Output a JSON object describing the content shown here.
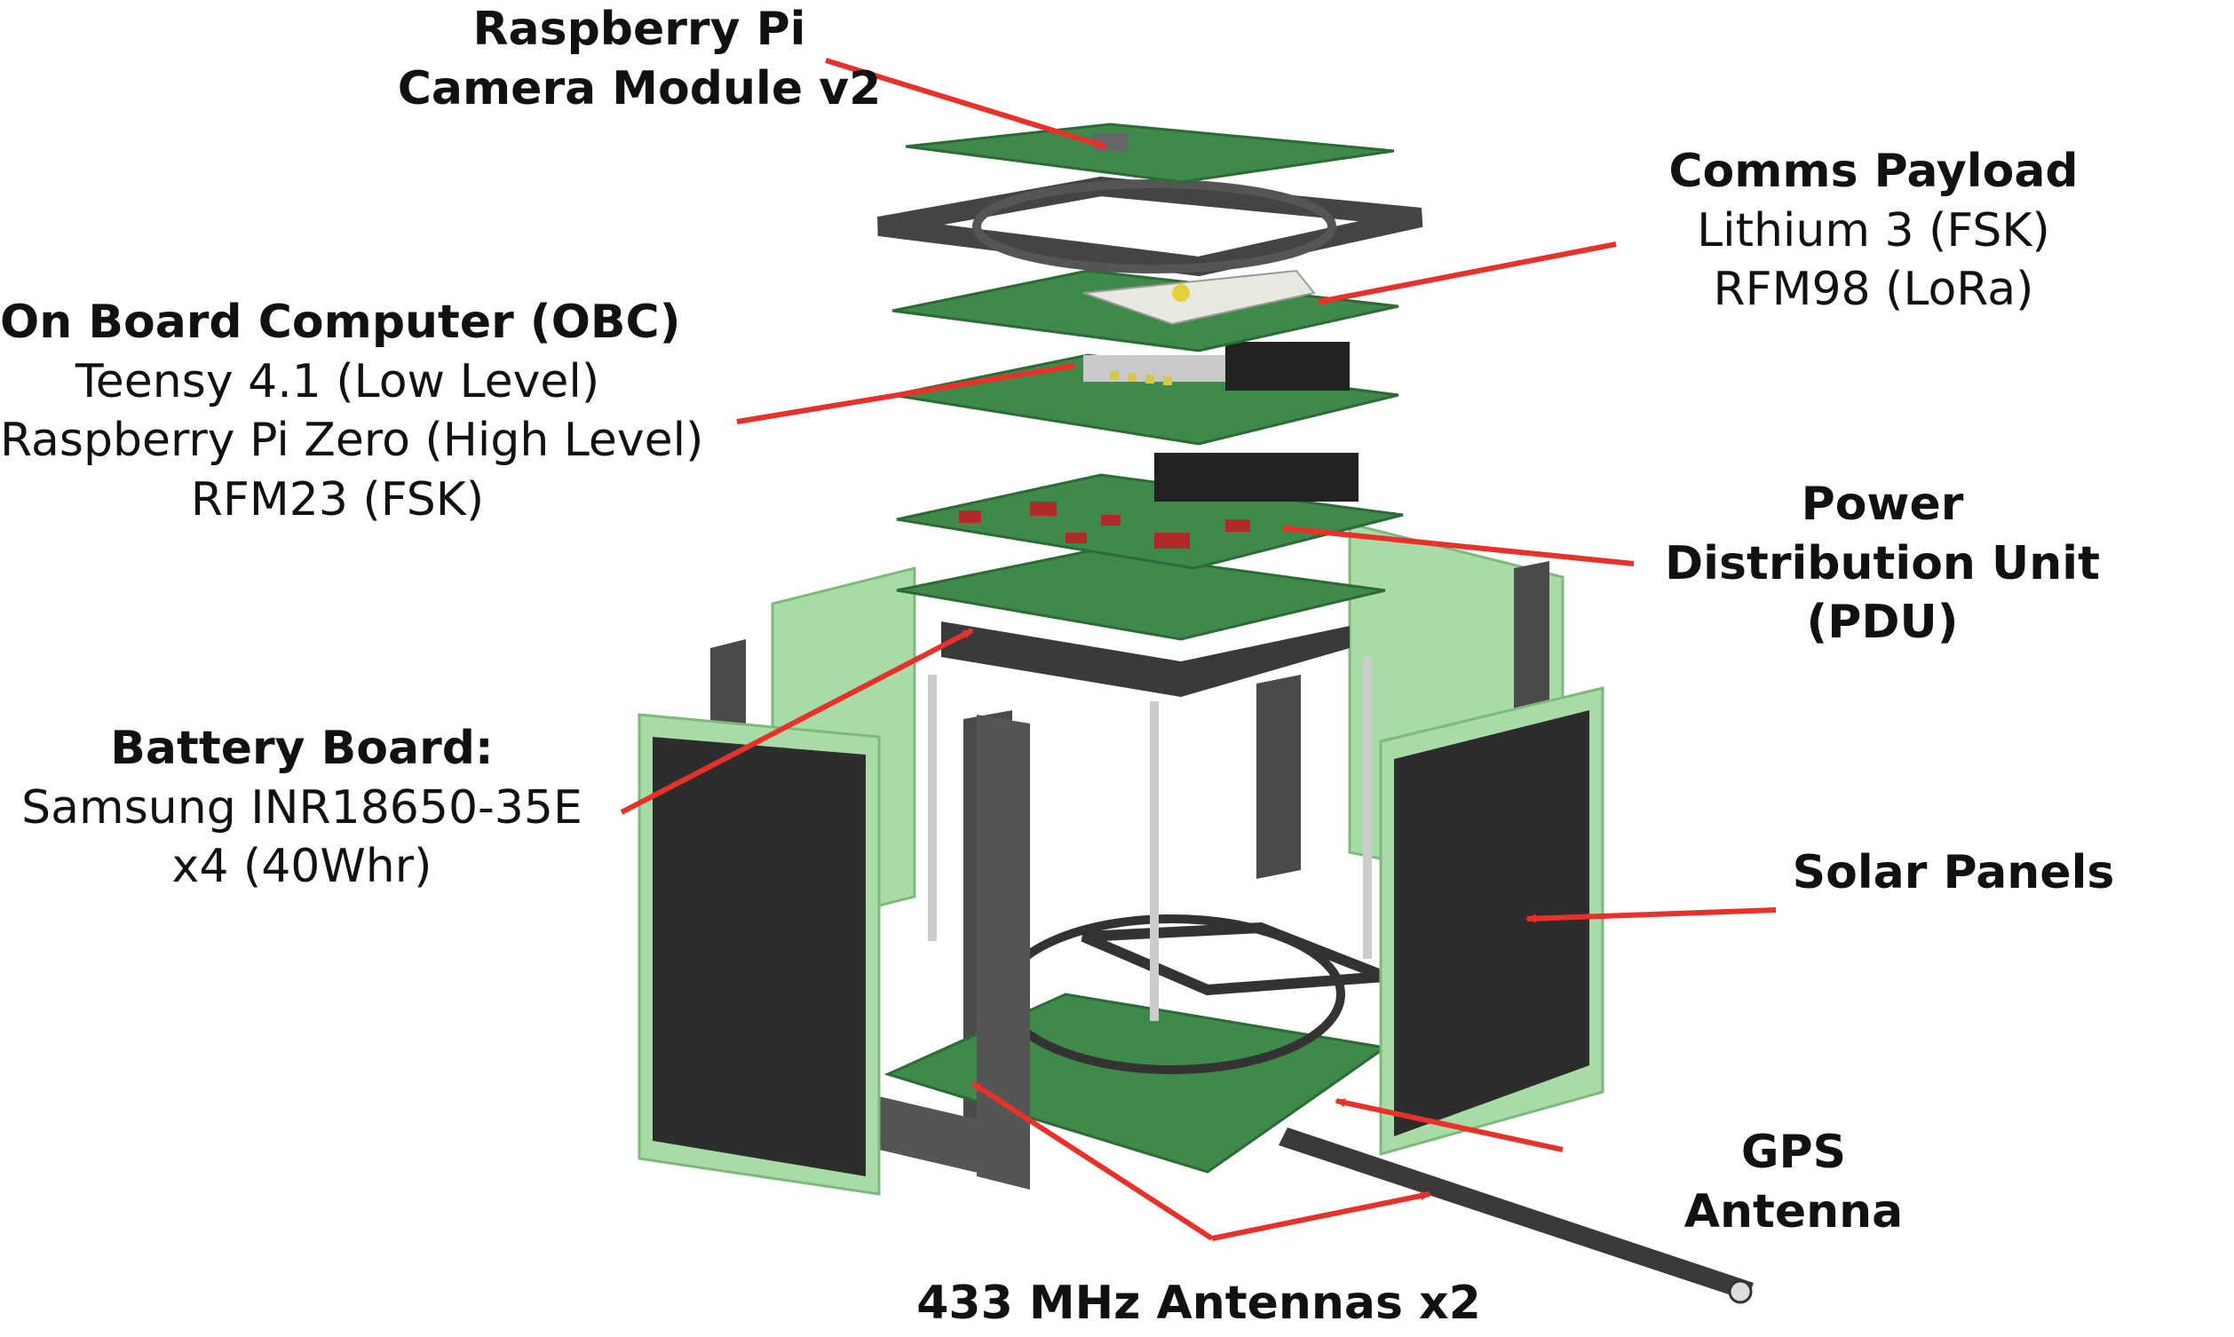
{
  "labels": {
    "camera": {
      "lines": [
        "Raspberry Pi",
        "Camera Module v2"
      ]
    },
    "comms": {
      "title": "Comms Payload",
      "lines": [
        "Lithium 3 (FSK)",
        "RFM98 (LoRa)"
      ]
    },
    "obc": {
      "title": "On Board Computer (OBC)",
      "lines": [
        "Teensy 4.1 (Low Level)",
        "Raspberry Pi Zero (High Level)",
        "RFM23 (FSK)"
      ]
    },
    "pdu": {
      "lines": [
        "Power",
        "Distribution Unit",
        "(PDU)"
      ]
    },
    "battery": {
      "title": "Battery Board:",
      "lines": [
        "Samsung INR18650-35E",
        "x4 (40Whr)"
      ]
    },
    "solar": {
      "title": "Solar Panels"
    },
    "gps": {
      "lines": [
        "GPS",
        "Antenna"
      ]
    },
    "antennas": {
      "title": "433 MHz Antennas x2"
    }
  },
  "colors": {
    "arrow": "#e8312a",
    "pcb": "#3f8a4a",
    "pcb_dark": "#2c6a37",
    "panel": "#a8dca6",
    "cell": "#2d2d2d",
    "frame": "#4a4a4a"
  }
}
